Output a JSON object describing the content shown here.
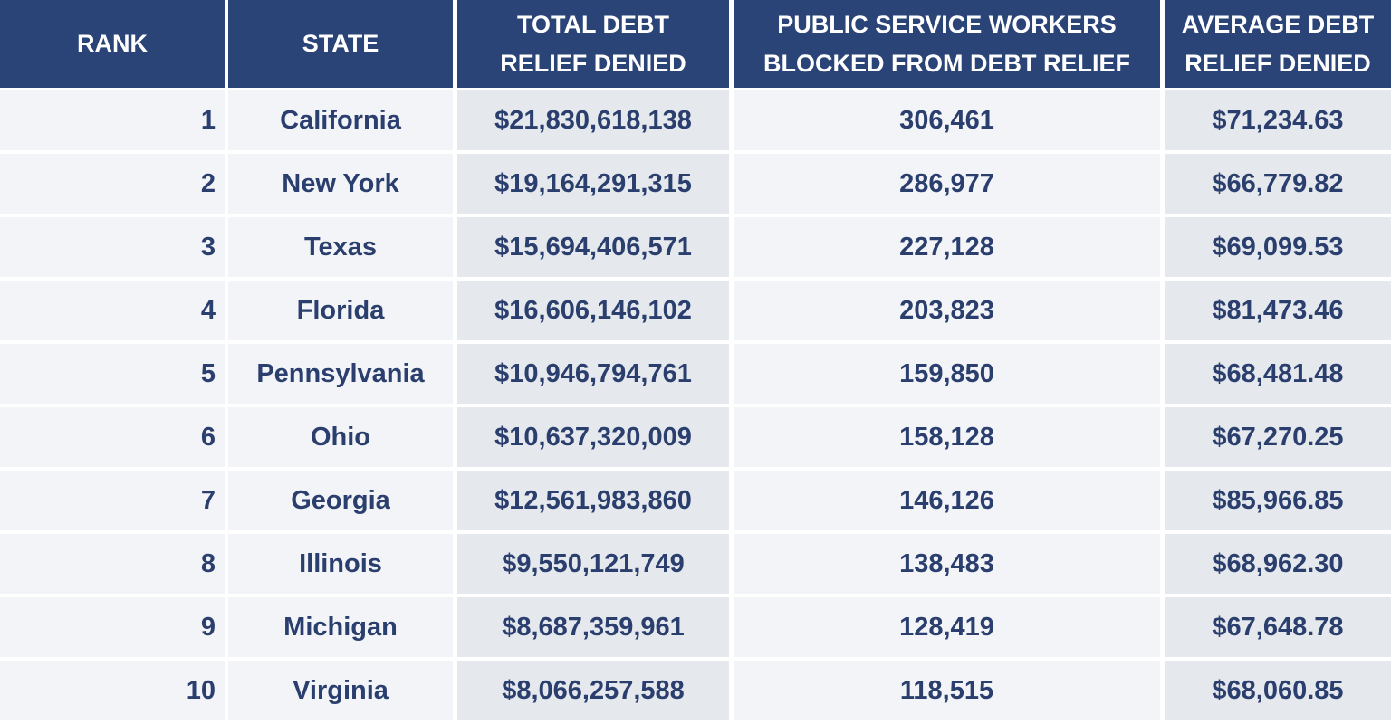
{
  "table": {
    "header": [
      [
        "RANK"
      ],
      [
        "STATE"
      ],
      [
        "TOTAL DEBT",
        "RELIEF DENIED"
      ],
      [
        "PUBLIC SERVICE WORKERS",
        "BLOCKED FROM DEBT RELIEF"
      ],
      [
        "AVERAGE DEBT",
        "RELIEF DENIED"
      ]
    ],
    "rows": [
      [
        "1",
        "California",
        "$21,830,618,138",
        "306,461",
        "$71,234.63"
      ],
      [
        "2",
        "New York",
        "$19,164,291,315",
        "286,977",
        "$66,779.82"
      ],
      [
        "3",
        "Texas",
        "$15,694,406,571",
        "227,128",
        "$69,099.53"
      ],
      [
        "4",
        "Florida",
        "$16,606,146,102",
        "203,823",
        "$81,473.46"
      ],
      [
        "5",
        "Pennsylvania",
        "$10,946,794,761",
        "159,850",
        "$68,481.48"
      ],
      [
        "6",
        "Ohio",
        "$10,637,320,009",
        "158,128",
        "$67,270.25"
      ],
      [
        "7",
        "Georgia",
        "$12,561,983,860",
        "146,126",
        "$85,966.85"
      ],
      [
        "8",
        "Illinois",
        "$9,550,121,749",
        "138,483",
        "$68,962.30"
      ],
      [
        "9",
        "Michigan",
        "$8,687,359,961",
        "128,419",
        "$67,648.78"
      ],
      [
        "10",
        "Virginia",
        "$8,066,257,588",
        "118,515",
        "$68,060.85"
      ]
    ]
  }
}
